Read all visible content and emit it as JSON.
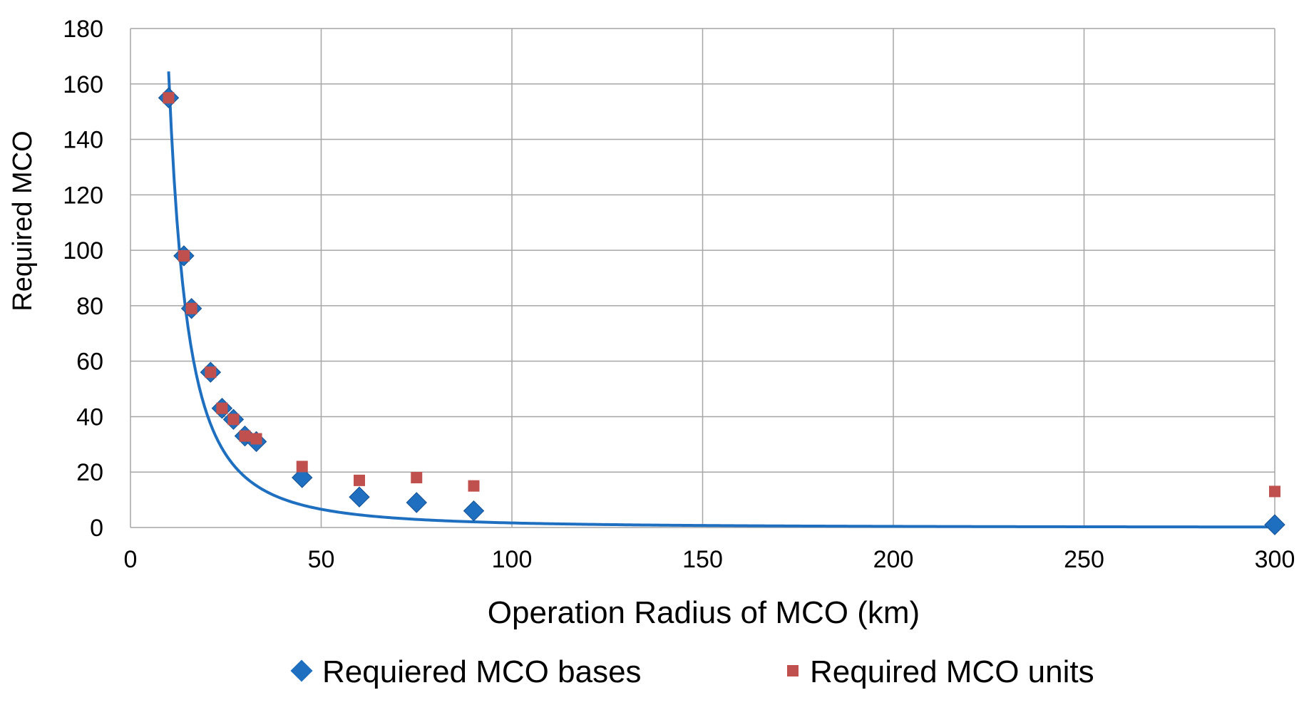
{
  "chart_data": {
    "type": "scatter",
    "title": "",
    "xlabel": "Operation Radius of MCO (km)",
    "ylabel": "Required MCO",
    "xlim": [
      0,
      300
    ],
    "ylim": [
      0,
      180
    ],
    "x_ticks": [
      0,
      50,
      100,
      150,
      200,
      250,
      300
    ],
    "y_ticks": [
      0,
      20,
      40,
      60,
      80,
      100,
      120,
      140,
      160,
      180
    ],
    "grid": true,
    "legend_position": "bottom",
    "series": [
      {
        "name": "Requiered MCO bases",
        "marker": "diamond",
        "color": "#1f6fc1",
        "points": [
          [
            10,
            155
          ],
          [
            14,
            98
          ],
          [
            16,
            79
          ],
          [
            21,
            56
          ],
          [
            24,
            43
          ],
          [
            27,
            39
          ],
          [
            30,
            33
          ],
          [
            33,
            31
          ],
          [
            45,
            18
          ],
          [
            60,
            11
          ],
          [
            75,
            9
          ],
          [
            90,
            6
          ],
          [
            300,
            1
          ]
        ]
      },
      {
        "name": "Required MCO units",
        "marker": "square",
        "color": "#c0504d",
        "points": [
          [
            10,
            155
          ],
          [
            14,
            98
          ],
          [
            16,
            79
          ],
          [
            21,
            56
          ],
          [
            24,
            43
          ],
          [
            27,
            39
          ],
          [
            30,
            33
          ],
          [
            33,
            32
          ],
          [
            45,
            22
          ],
          [
            60,
            17
          ],
          [
            75,
            18
          ],
          [
            90,
            15
          ],
          [
            300,
            13
          ]
        ]
      }
    ],
    "trendline": {
      "series": "Requiered MCO bases",
      "type": "power",
      "color": "#1f6fc1",
      "x_range": [
        10,
        300
      ],
      "coefficient": 16450,
      "exponent": -2
    }
  }
}
